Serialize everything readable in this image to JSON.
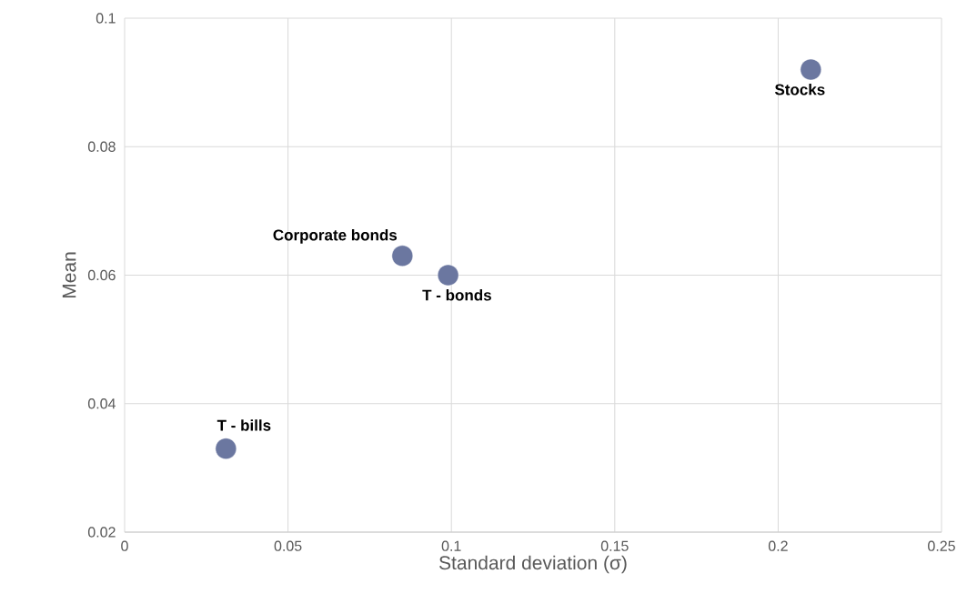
{
  "chart_data": {
    "type": "scatter",
    "xlabel": "Standard deviation (σ)",
    "ylabel": "Mean",
    "x": [
      0.21,
      0.085,
      0.099,
      0.031
    ],
    "values": [
      0.092,
      0.063,
      0.06,
      0.033
    ],
    "color": "#6b77a0",
    "annotations": [
      {
        "text": "Stocks",
        "x": 0.21,
        "y": 0.092
      },
      {
        "text": "Corporate bonds",
        "x": 0.085,
        "y": 0.063
      },
      {
        "text": "T - bonds",
        "x": 0.099,
        "y": 0.06
      },
      {
        "text": "T - bills",
        "x": 0.031,
        "y": 0.033
      }
    ],
    "xlim": [
      0,
      0.25
    ],
    "ylim": [
      0.02,
      0.1
    ],
    "xticks": [
      0,
      0.05,
      0.1,
      0.15,
      0.2,
      0.25
    ],
    "yticks": [
      0.02,
      0.04,
      0.06,
      0.08,
      0.1
    ],
    "grid": true,
    "marker": "circle"
  }
}
